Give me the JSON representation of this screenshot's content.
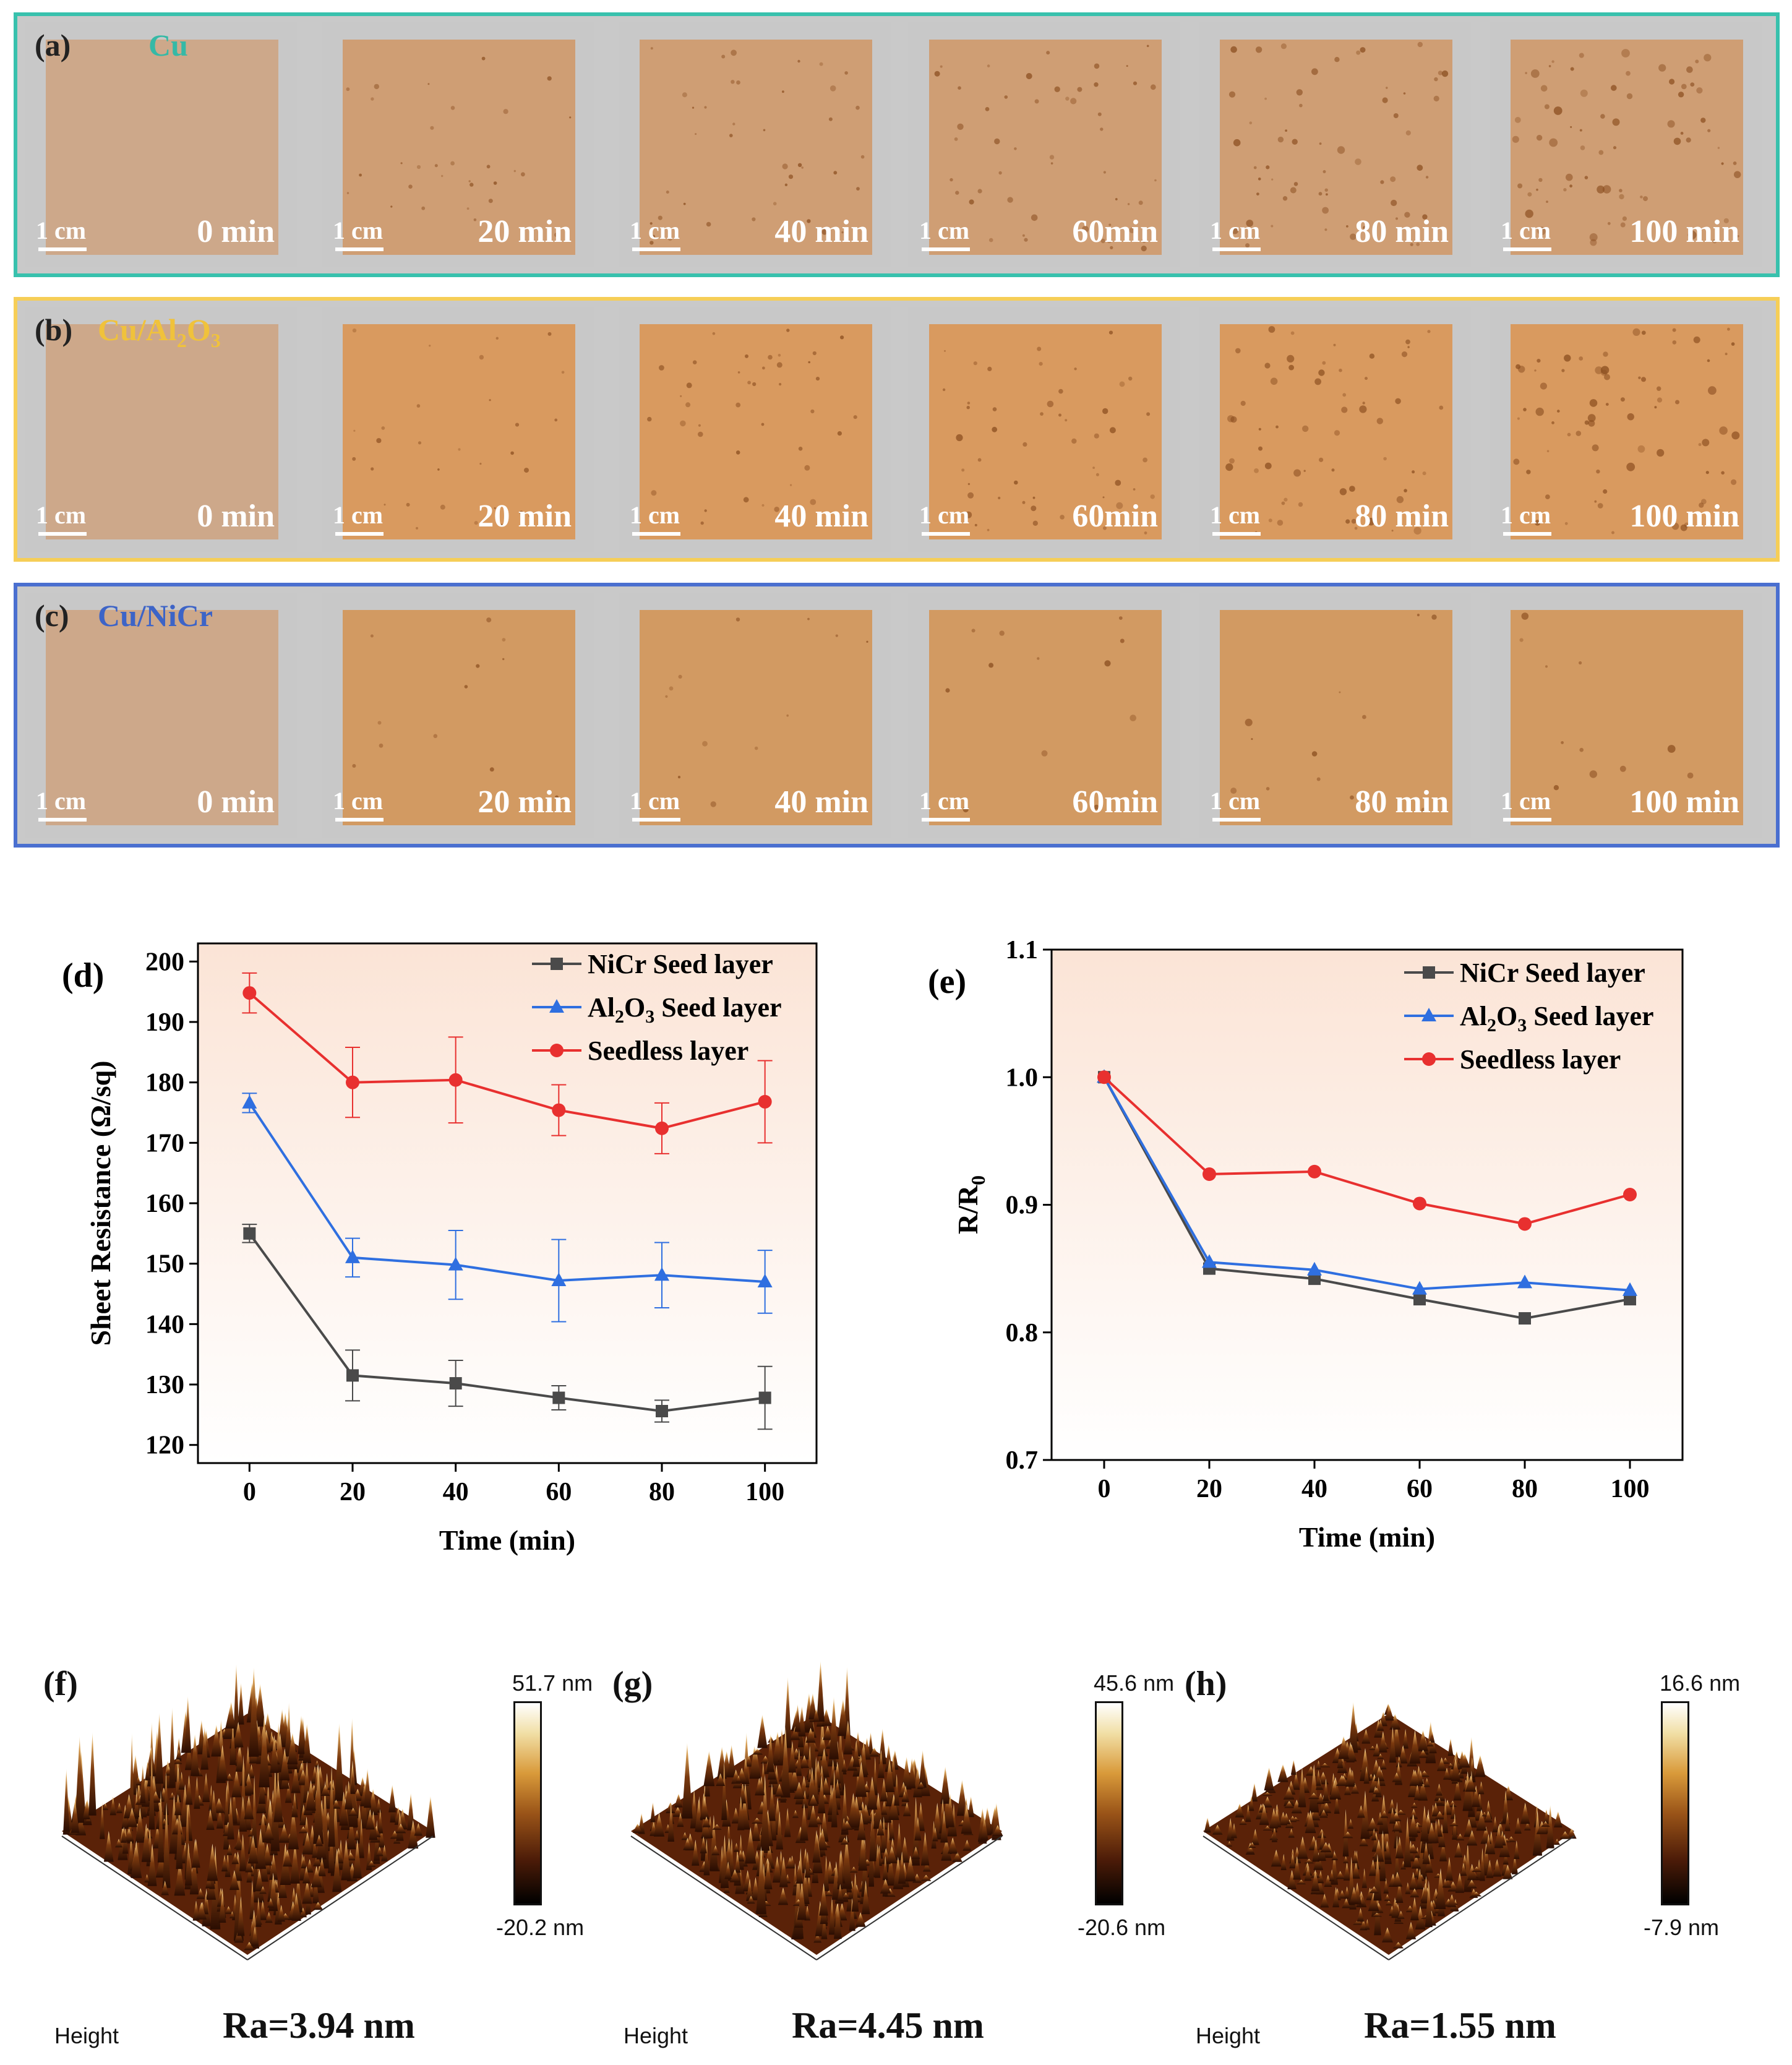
{
  "photo_rows": [
    {
      "letter": "(a)",
      "material": "Cu",
      "material_color": "#35b9a6",
      "frame_color": "#38c1ad",
      "sample_color": "#cf9e74"
    },
    {
      "letter": "(b)",
      "material": "Cu/Al",
      "material_sub1": "2",
      "material_mid": "O",
      "material_sub2": "3",
      "material_color": "#f0c23b",
      "frame_color": "#f6ce57",
      "sample_color": "#d99a5f"
    },
    {
      "letter": "(c)",
      "material": "Cu/NiCr",
      "material_color": "#3d64c7",
      "frame_color": "#4a6fd0",
      "sample_color": "#d29a62"
    }
  ],
  "scale_label": "1 cm",
  "time_labels": [
    "0 min",
    "20  min",
    "40 min",
    "60min",
    "80  min",
    "100 min"
  ],
  "chart_d": {
    "letter": "(d)",
    "xlabel": "Time (min)",
    "ylabel": "Sheet Resistance (Ω/sq)",
    "xticks": [
      "0",
      "20",
      "40",
      "60",
      "80",
      "100"
    ],
    "yticks": [
      "120",
      "130",
      "140",
      "150",
      "160",
      "170",
      "180",
      "190",
      "200"
    ],
    "legend": [
      {
        "pre": "NiCr Seed layer",
        "sub": "",
        "post": ""
      },
      {
        "pre": "Al",
        "sub": "2",
        "mid": "O",
        "sub2": "3",
        "post": " Seed layer"
      },
      {
        "pre": "Seedless layer",
        "sub": "",
        "post": ""
      }
    ]
  },
  "chart_e": {
    "letter": "(e)",
    "xlabel": "Time (min)",
    "ylabel_main": "R/R",
    "ylabel_sub": "0",
    "xticks": [
      "0",
      "20",
      "40",
      "60",
      "80",
      "100"
    ],
    "yticks": [
      "0.7",
      "0.8",
      "0.9",
      "1.0",
      "1.1"
    ],
    "legend": [
      {
        "pre": "NiCr Seed layer"
      },
      {
        "pre": "Al",
        "sub": "2",
        "mid": "O",
        "sub2": "3",
        "post": " Seed layer"
      },
      {
        "pre": "Seedless layer"
      }
    ]
  },
  "chart_data": [
    {
      "type": "line",
      "x": [
        0,
        20,
        40,
        60,
        80,
        100
      ],
      "xlim": [
        -10,
        110
      ],
      "ylim": [
        117,
        203
      ],
      "xlabel": "Time (min)",
      "ylabel": "Sheet Resistance (Ω/sq)",
      "legend_position": "top-right",
      "series": [
        {
          "name": "NiCr Seed layer",
          "color": "#4a4a4a",
          "marker": "square",
          "values": [
            155,
            131.5,
            130.2,
            127.8,
            125.6,
            127.8
          ],
          "errors": [
            1.5,
            4.2,
            3.8,
            2.0,
            1.8,
            5.2
          ]
        },
        {
          "name": "Al2O3 Seed layer",
          "color": "#2f6fe0",
          "marker": "triangle",
          "values": [
            176.6,
            151,
            149.8,
            147.2,
            148.1,
            147
          ],
          "errors": [
            1.6,
            3.2,
            5.7,
            6.8,
            5.4,
            5.2
          ]
        },
        {
          "name": "Seedless layer",
          "color": "#e8302f",
          "marker": "circle",
          "values": [
            194.8,
            180,
            180.4,
            175.4,
            172.4,
            176.8
          ],
          "errors": [
            3.3,
            5.8,
            7.1,
            4.2,
            4.2,
            6.8
          ]
        }
      ]
    },
    {
      "type": "line",
      "x": [
        0,
        20,
        40,
        60,
        80,
        100
      ],
      "xlim": [
        -10,
        110
      ],
      "ylim": [
        0.7,
        1.1
      ],
      "xlabel": "Time (min)",
      "ylabel": "R/R0",
      "legend_position": "top-right",
      "series": [
        {
          "name": "NiCr Seed layer",
          "color": "#4a4a4a",
          "marker": "square",
          "values": [
            1.0,
            0.85,
            0.842,
            0.826,
            0.811,
            0.826
          ]
        },
        {
          "name": "Al2O3 Seed layer",
          "color": "#2f6fe0",
          "marker": "triangle",
          "values": [
            1.0,
            0.855,
            0.849,
            0.834,
            0.839,
            0.833
          ]
        },
        {
          "name": "Seedless layer",
          "color": "#e8302f",
          "marker": "circle",
          "values": [
            1.0,
            0.924,
            0.926,
            0.901,
            0.885,
            0.908
          ]
        }
      ]
    }
  ],
  "afm": [
    {
      "letter": "(f)",
      "max": "51.7 nm",
      "min": "-20.2 nm",
      "ra": "Ra=3.94 nm",
      "height_label": "Height"
    },
    {
      "letter": "(g)",
      "max": "45.6 nm",
      "min": "-20.6 nm",
      "ra": "Ra=4.45 nm",
      "height_label": "Height"
    },
    {
      "letter": "(h)",
      "max": "16.6 nm",
      "min": "-7.9 nm",
      "ra": "Ra=1.55 nm",
      "height_label": "Height"
    }
  ]
}
